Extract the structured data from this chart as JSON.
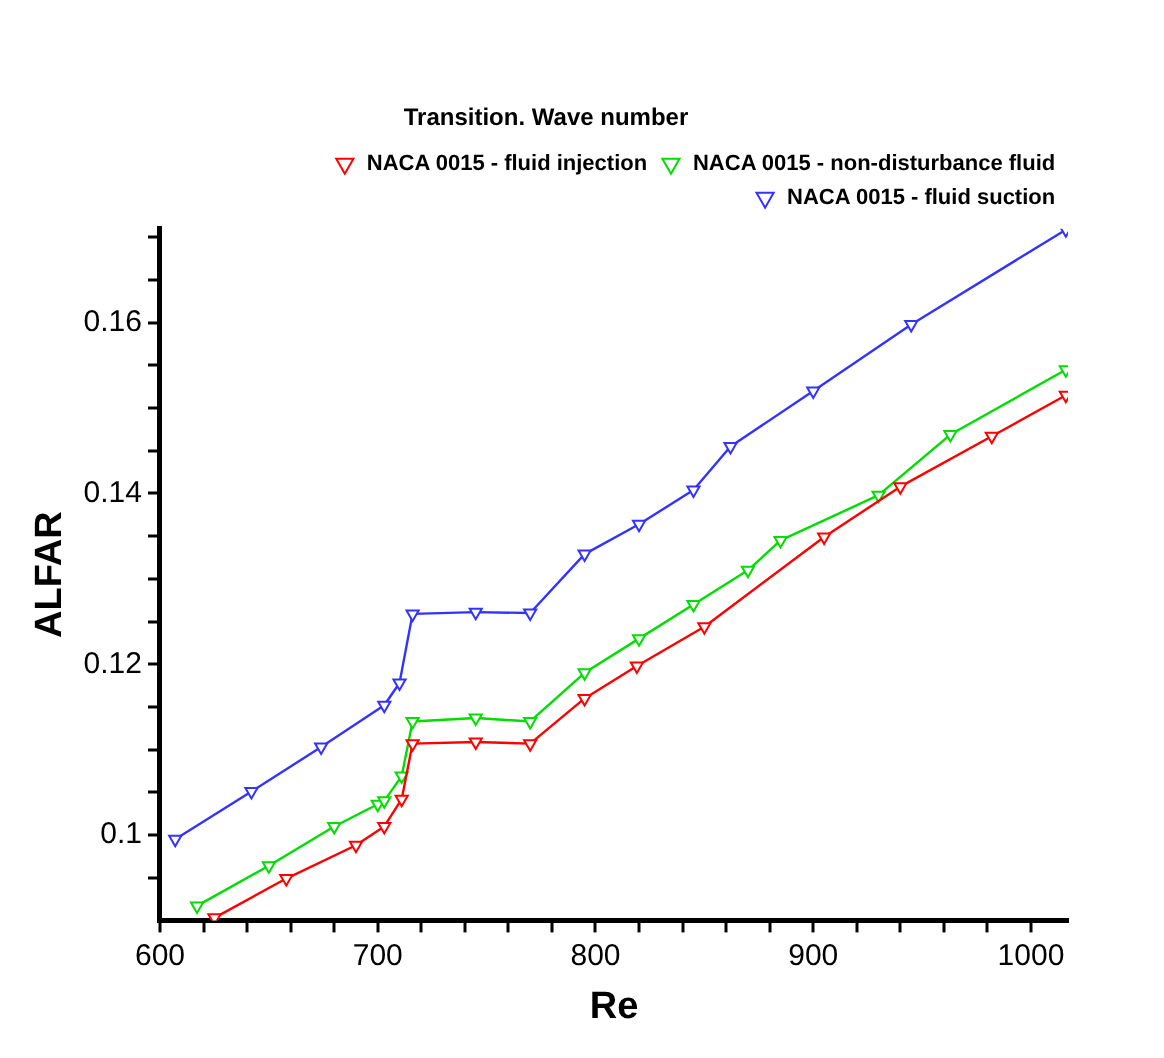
{
  "chart_data": {
    "type": "line",
    "title": "Transition. Wave number",
    "xlabel": "Re",
    "ylabel": "ALFAR",
    "xlim": [
      600,
      1017
    ],
    "ylim": [
      0.09,
      0.171
    ],
    "xticks": [
      600,
      {
        "value": 620,
        "label": null
      },
      {
        "value": 640,
        "label": null
      },
      {
        "value": 660,
        "label": null
      },
      {
        "value": 680,
        "label": null
      },
      700,
      {
        "value": 720,
        "label": null
      },
      {
        "value": 740,
        "label": null
      },
      {
        "value": 760,
        "label": null
      },
      {
        "value": 780,
        "label": null
      },
      800,
      {
        "value": 820,
        "label": null
      },
      {
        "value": 840,
        "label": null
      },
      {
        "value": 860,
        "label": null
      },
      {
        "value": 880,
        "label": null
      },
      900,
      {
        "value": 920,
        "label": null
      },
      {
        "value": 940,
        "label": null
      },
      {
        "value": 960,
        "label": null
      },
      {
        "value": 980,
        "label": null
      },
      1000
    ],
    "yticks": [
      {
        "value": 0.095,
        "label": null
      },
      0.1,
      {
        "value": 0.105,
        "label": null
      },
      {
        "value": 0.11,
        "label": null
      },
      {
        "value": 0.115,
        "label": null
      },
      0.12,
      {
        "value": 0.125,
        "label": null
      },
      {
        "value": 0.13,
        "label": null
      },
      {
        "value": 0.135,
        "label": null
      },
      0.14,
      {
        "value": 0.145,
        "label": null
      },
      {
        "value": 0.15,
        "label": null
      },
      {
        "value": 0.155,
        "label": null
      },
      0.16,
      {
        "value": 0.165,
        "label": null
      },
      {
        "value": 0.17,
        "label": null
      }
    ],
    "grid": false,
    "legend": "top right",
    "marker": "triangle",
    "line_style": "solid",
    "series": [
      {
        "name": "NACA 0015 - fluid injection",
        "color": "#ff0000",
        "x": [
          625,
          658,
          690,
          703,
          711,
          716,
          745,
          770,
          795,
          819,
          850,
          905,
          940,
          982,
          1016
        ],
        "values": [
          0.0903,
          0.0949,
          0.0988,
          0.101,
          0.1042,
          0.1107,
          0.1109,
          0.1107,
          0.116,
          0.1198,
          0.1244,
          0.1349,
          0.1408,
          0.1467,
          0.1515
        ]
      },
      {
        "name": "NACA 0015 - non-disturbance fluid",
        "color": "#00dd00",
        "x": [
          617,
          650,
          680,
          700,
          703,
          711,
          716,
          745,
          770,
          795,
          820,
          845,
          870,
          885,
          930,
          963,
          1016
        ],
        "values": [
          0.0917,
          0.0964,
          0.101,
          0.1036,
          0.104,
          0.1069,
          0.1133,
          0.1137,
          0.1133,
          0.119,
          0.123,
          0.127,
          0.131,
          0.1345,
          0.1398,
          0.1469,
          0.1545
        ]
      },
      {
        "name": "NACA 0015 - fluid suction",
        "color": "#3333ff",
        "x": [
          607,
          642,
          674,
          703,
          710,
          716,
          745,
          770,
          795,
          820,
          845,
          862,
          900,
          945,
          1016
        ],
        "values": [
          0.0995,
          0.1051,
          0.1103,
          0.1152,
          0.1178,
          0.1259,
          0.1261,
          0.126,
          0.1329,
          0.1364,
          0.1404,
          0.1455,
          0.152,
          0.1598,
          0.1709
        ]
      }
    ]
  }
}
